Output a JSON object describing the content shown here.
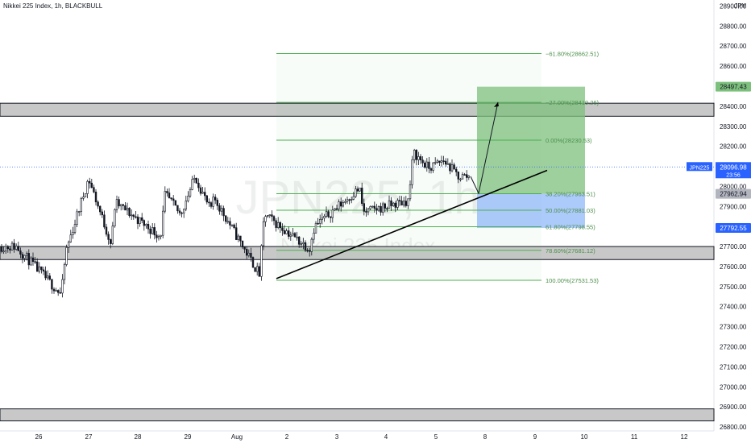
{
  "header": {
    "title": "Nikkei 225 Index, 1h, BLACKBULL",
    "currency": "JPY"
  },
  "watermark": {
    "symbol": "JPN225, 1h",
    "name": "Nikkei 225 Index"
  },
  "colors": {
    "candle": "#131722",
    "zone_fill": "#c8c8c8",
    "fib_line": "#4caf50",
    "fib_text": "#4a8f4a",
    "long_profit": "#7dc07d",
    "long_stop": "#90b8f8",
    "price_line": "#2962ff"
  },
  "chart_data": {
    "type": "candlestick",
    "title": "Nikkei 225 Index, 1h, BLACKBULL",
    "ylabel": "JPY",
    "ylim": [
      26780,
      28930
    ],
    "x_tick_labels": [
      "26",
      "27",
      "28",
      "29",
      "Aug",
      "2",
      "3",
      "4",
      "5",
      "8",
      "9",
      "10",
      "11",
      "12"
    ],
    "y_ticks": [
      26800,
      26900,
      27000,
      27100,
      27200,
      27300,
      27400,
      27500,
      27600,
      27700,
      27800,
      27900,
      28000,
      28100,
      28200,
      28300,
      28400,
      28500,
      28600,
      28700,
      28800,
      28900
    ],
    "price_waypoints": [
      {
        "x": "26",
        "y": 27700
      },
      {
        "x": "26",
        "y": 27580
      },
      {
        "x": "26",
        "y": 27460
      },
      {
        "x": "27",
        "y": 27680
      },
      {
        "x": "27",
        "y": 28040
      },
      {
        "x": "27",
        "y": 27710
      },
      {
        "x": "28",
        "y": 27920
      },
      {
        "x": "28",
        "y": 27750
      },
      {
        "x": "29",
        "y": 27960
      },
      {
        "x": "29",
        "y": 27860
      },
      {
        "x": "29",
        "y": 28050
      },
      {
        "x": "29",
        "y": 27880
      },
      {
        "x": "Aug",
        "y": 27940
      },
      {
        "x": "Aug",
        "y": 27560
      },
      {
        "x": "2",
        "y": 27860
      },
      {
        "x": "2",
        "y": 27690
      },
      {
        "x": "3",
        "y": 27800
      },
      {
        "x": "3",
        "y": 27990
      },
      {
        "x": "4",
        "y": 27870
      },
      {
        "x": "4",
        "y": 27930
      },
      {
        "x": "5",
        "y": 28170
      },
      {
        "x": "5",
        "y": 28090
      },
      {
        "x": "5",
        "y": 28130
      },
      {
        "x": "5",
        "y": 28050
      }
    ],
    "horizontal_zones": [
      {
        "from": 28350,
        "to": 28415
      },
      {
        "from": 27635,
        "to": 27700
      },
      {
        "from": 26830,
        "to": 26890
      }
    ],
    "fibonacci": [
      {
        "label": "−61.80%(28662.51)",
        "value": 28662.51
      },
      {
        "label": "−27.00%(28419.26)",
        "value": 28419.26
      },
      {
        "label": "0.00%(28230.53)",
        "value": 28230.53
      },
      {
        "label": "38.20%(27963.51)",
        "value": 27963.51
      },
      {
        "label": "50.00%(27881.03)",
        "value": 27881.03
      },
      {
        "label": "61.80%(27798.55)",
        "value": 27798.55
      },
      {
        "label": "78.60%(27681.12)",
        "value": 27681.12
      },
      {
        "label": "100.00%(27531.53)",
        "value": 27531.53
      }
    ],
    "long_position": {
      "target": 28497.43,
      "entry": 27962.94,
      "stop": 27792.55
    },
    "trendline": [
      {
        "x": "Aug",
        "y": 27540
      },
      {
        "x": "9",
        "y": 28080
      }
    ],
    "projection": [
      {
        "x": "5",
        "y": 28050
      },
      {
        "x": "8",
        "y": 27965
      },
      {
        "x": "8",
        "y": 28420
      }
    ],
    "last_price": 28096.98,
    "last_price_symbol": "JPN225",
    "countdown": "23:56",
    "price_labels": [
      {
        "value": "28497.43",
        "kind": "target"
      },
      {
        "value": "27962.94",
        "kind": "entry"
      },
      {
        "value": "27792.55",
        "kind": "stop"
      }
    ]
  }
}
